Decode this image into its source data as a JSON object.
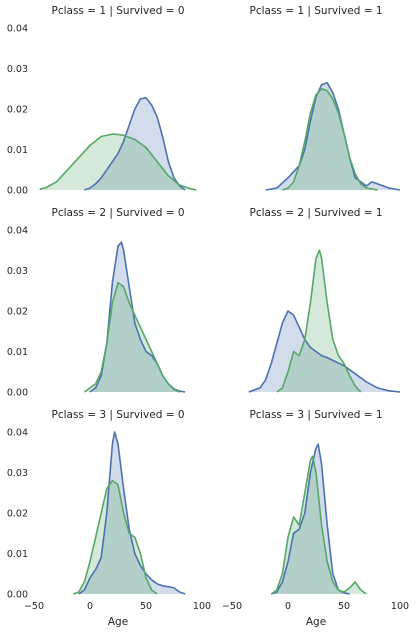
{
  "chart_data": {
    "type": "area",
    "grid": false,
    "xlabel": "Age",
    "ylabel": "",
    "xlim": [
      -50,
      100
    ],
    "ylim": [
      0,
      0.04
    ],
    "xticks": [
      "−50",
      "0",
      "50",
      "100"
    ],
    "yticks": [
      "0.00",
      "0.01",
      "0.02",
      "0.03",
      "0.04"
    ],
    "colors": {
      "blue": "#4c72b0",
      "green": "#55a868"
    },
    "panels": [
      {
        "title": "Pclass = 1 | Survived = 0",
        "series": [
          {
            "color": "blue",
            "x": [
              -5,
              0,
              5,
              10,
              15,
              20,
              25,
              30,
              35,
              40,
              45,
              50,
              55,
              60,
              65,
              70,
              75,
              80,
              85
            ],
            "y": [
              0,
              0.0005,
              0.0015,
              0.003,
              0.005,
              0.007,
              0.009,
              0.012,
              0.016,
              0.02,
              0.0225,
              0.0228,
              0.021,
              0.018,
              0.013,
              0.007,
              0.003,
              0.001,
              0
            ]
          },
          {
            "color": "green",
            "x": [
              -45,
              -40,
              -30,
              -20,
              -10,
              0,
              10,
              20,
              25,
              30,
              40,
              50,
              60,
              70,
              80,
              90,
              95
            ],
            "y": [
              0.0002,
              0.0005,
              0.002,
              0.005,
              0.008,
              0.011,
              0.0132,
              0.0138,
              0.0137,
              0.0135,
              0.0125,
              0.0105,
              0.007,
              0.0035,
              0.0012,
              0.0003,
              0
            ]
          }
        ]
      },
      {
        "title": "Pclass = 1 | Survived = 1",
        "series": [
          {
            "color": "blue",
            "x": [
              -20,
              -10,
              0,
              10,
              15,
              20,
              25,
              30,
              35,
              40,
              45,
              50,
              55,
              60,
              70,
              75,
              80,
              90,
              100
            ],
            "y": [
              0,
              0.0005,
              0.003,
              0.006,
              0.01,
              0.017,
              0.023,
              0.026,
              0.0265,
              0.024,
              0.02,
              0.014,
              0.008,
              0.003,
              0.001,
              0.002,
              0.0015,
              0.0005,
              0
            ]
          },
          {
            "color": "green",
            "x": [
              -5,
              0,
              5,
              10,
              15,
              20,
              25,
              30,
              35,
              40,
              45,
              50,
              55,
              60,
              65,
              70,
              80
            ],
            "y": [
              0,
              0.0005,
              0.002,
              0.006,
              0.012,
              0.019,
              0.0235,
              0.025,
              0.0245,
              0.0225,
              0.019,
              0.014,
              0.008,
              0.004,
              0.0015,
              0.0005,
              0
            ]
          }
        ]
      },
      {
        "title": "Pclass = 2 | Survived = 0",
        "series": [
          {
            "color": "blue",
            "x": [
              0,
              5,
              10,
              15,
              20,
              25,
              28,
              30,
              35,
              40,
              45,
              50,
              55,
              60,
              65,
              70,
              75,
              80,
              85
            ],
            "y": [
              0,
              0.001,
              0.004,
              0.012,
              0.027,
              0.036,
              0.037,
              0.035,
              0.026,
              0.017,
              0.013,
              0.01,
              0.009,
              0.007,
              0.004,
              0.002,
              0.0008,
              0.0002,
              0
            ]
          },
          {
            "color": "green",
            "x": [
              -5,
              0,
              5,
              10,
              15,
              20,
              25,
              30,
              35,
              40,
              45,
              50,
              55,
              60,
              65,
              70,
              75,
              80
            ],
            "y": [
              0,
              0.001,
              0.002,
              0.005,
              0.012,
              0.022,
              0.027,
              0.026,
              0.022,
              0.019,
              0.016,
              0.013,
              0.01,
              0.007,
              0.004,
              0.002,
              0.0006,
              0
            ]
          }
        ]
      },
      {
        "title": "Pclass = 2 | Survived = 1",
        "series": [
          {
            "color": "blue",
            "x": [
              -35,
              -25,
              -20,
              -15,
              -10,
              -5,
              0,
              5,
              10,
              15,
              20,
              25,
              30,
              35,
              40,
              50,
              60,
              70,
              80,
              90,
              100
            ],
            "y": [
              0,
              0.001,
              0.003,
              0.007,
              0.012,
              0.017,
              0.02,
              0.019,
              0.016,
              0.013,
              0.011,
              0.01,
              0.009,
              0.0085,
              0.0078,
              0.0065,
              0.0045,
              0.0025,
              0.001,
              0.0003,
              0
            ]
          },
          {
            "color": "green",
            "x": [
              -10,
              -5,
              0,
              5,
              10,
              15,
              20,
              25,
              28,
              30,
              35,
              40,
              45,
              50,
              55,
              60,
              65
            ],
            "y": [
              0,
              0.001,
              0.005,
              0.01,
              0.009,
              0.013,
              0.022,
              0.033,
              0.035,
              0.033,
              0.022,
              0.013,
              0.009,
              0.007,
              0.004,
              0.0015,
              0
            ]
          }
        ]
      },
      {
        "title": "Pclass = 3 | Survived = 0",
        "series": [
          {
            "color": "blue",
            "x": [
              -10,
              -5,
              0,
              5,
              10,
              15,
              20,
              22,
              25,
              30,
              35,
              40,
              45,
              50,
              55,
              60,
              65,
              70,
              75,
              80,
              85
            ],
            "y": [
              0,
              0.001,
              0.004,
              0.006,
              0.009,
              0.02,
              0.037,
              0.04,
              0.037,
              0.026,
              0.016,
              0.01,
              0.007,
              0.005,
              0.0035,
              0.0025,
              0.002,
              0.0018,
              0.0015,
              0.0005,
              0
            ]
          },
          {
            "color": "green",
            "x": [
              -15,
              -10,
              -5,
              0,
              5,
              10,
              15,
              20,
              25,
              30,
              35,
              40,
              45,
              50,
              55,
              60
            ],
            "y": [
              0,
              0.0005,
              0.003,
              0.008,
              0.014,
              0.02,
              0.026,
              0.028,
              0.027,
              0.02,
              0.015,
              0.014,
              0.01,
              0.004,
              0.001,
              0
            ]
          }
        ]
      },
      {
        "title": "Pclass = 3 | Survived = 1",
        "series": [
          {
            "color": "blue",
            "x": [
              -15,
              -10,
              -5,
              0,
              5,
              10,
              15,
              20,
              25,
              27,
              30,
              35,
              40,
              45,
              50,
              55
            ],
            "y": [
              0,
              0.0005,
              0.003,
              0.008,
              0.015,
              0.016,
              0.02,
              0.03,
              0.036,
              0.037,
              0.032,
              0.017,
              0.005,
              0.001,
              0.0003,
              0
            ]
          },
          {
            "color": "green",
            "x": [
              -15,
              -10,
              -5,
              0,
              5,
              10,
              15,
              20,
              22,
              25,
              30,
              35,
              40,
              45,
              50,
              55,
              60,
              65,
              70
            ],
            "y": [
              0,
              0.001,
              0.005,
              0.014,
              0.019,
              0.017,
              0.025,
              0.033,
              0.034,
              0.03,
              0.017,
              0.008,
              0.003,
              0.001,
              0.0005,
              0.0015,
              0.003,
              0.001,
              0
            ]
          }
        ]
      }
    ]
  }
}
